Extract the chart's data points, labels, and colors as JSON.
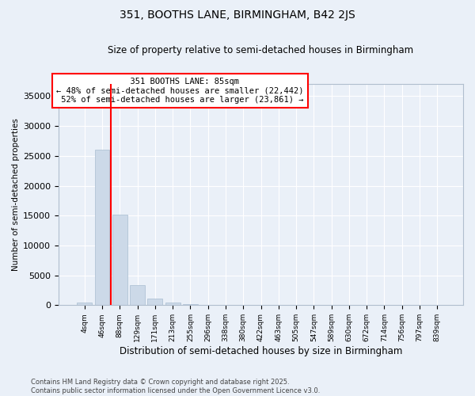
{
  "title": "351, BOOTHS LANE, BIRMINGHAM, B42 2JS",
  "subtitle": "Size of property relative to semi-detached houses in Birmingham",
  "xlabel": "Distribution of semi-detached houses by size in Birmingham",
  "ylabel": "Number of semi-detached properties",
  "property_label": "351 BOOTHS LANE: 85sqm",
  "pct_smaller": 48,
  "pct_larger": 52,
  "count_smaller": 22442,
  "count_larger": 23861,
  "bar_color": "#ccd9e8",
  "bar_edge_color": "#a8bdd0",
  "vline_color": "red",
  "annotation_box_color": "red",
  "annotation_fill": "white",
  "background_color": "#eaf0f8",
  "grid_color": "white",
  "categories": [
    "4sqm",
    "46sqm",
    "88sqm",
    "129sqm",
    "171sqm",
    "213sqm",
    "255sqm",
    "296sqm",
    "338sqm",
    "380sqm",
    "422sqm",
    "463sqm",
    "505sqm",
    "547sqm",
    "589sqm",
    "630sqm",
    "672sqm",
    "714sqm",
    "756sqm",
    "797sqm",
    "839sqm"
  ],
  "values": [
    420,
    26100,
    15150,
    3300,
    1050,
    480,
    160,
    60,
    10,
    5,
    3,
    2,
    1,
    0,
    0,
    0,
    0,
    0,
    0,
    0,
    0
  ],
  "ylim": [
    0,
    37000
  ],
  "yticks": [
    0,
    5000,
    10000,
    15000,
    20000,
    25000,
    30000,
    35000
  ],
  "vline_x": 1.5,
  "footer": "Contains HM Land Registry data © Crown copyright and database right 2025.\nContains public sector information licensed under the Open Government Licence v3.0."
}
